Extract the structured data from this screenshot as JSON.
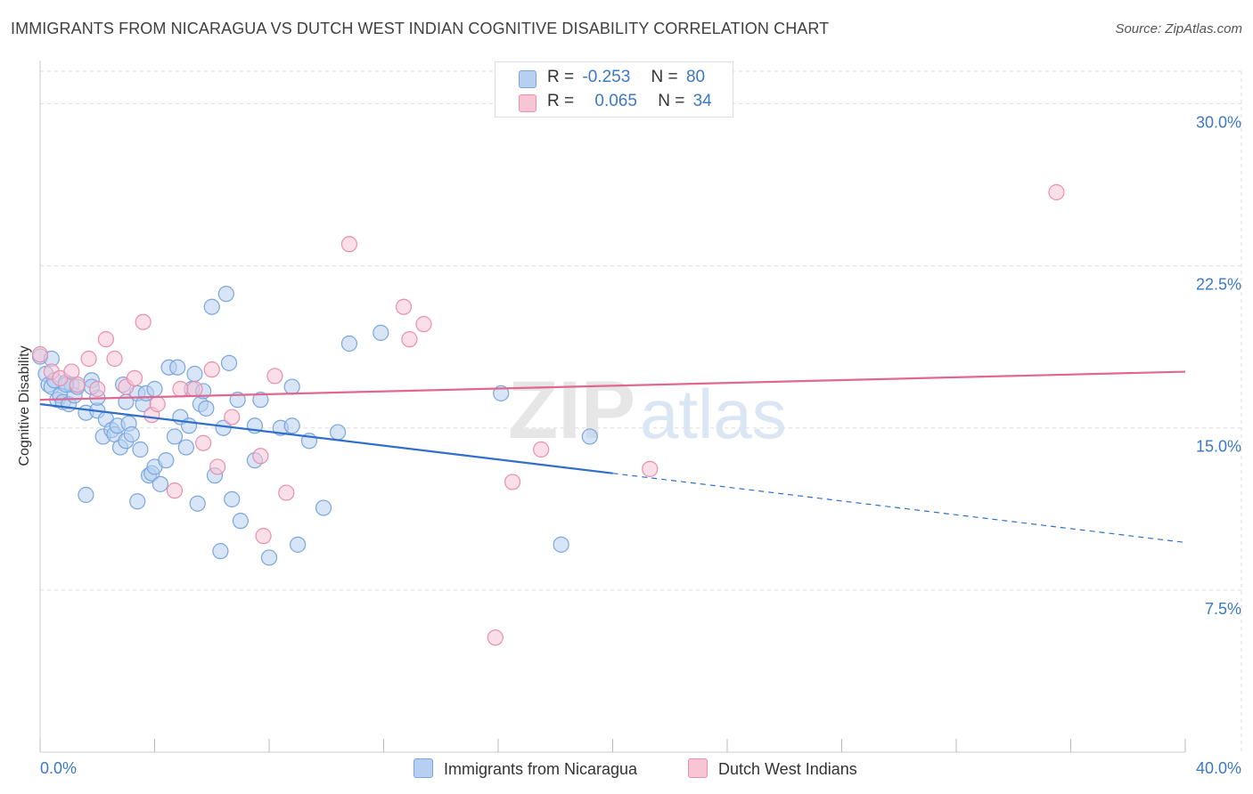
{
  "header": {
    "title": "IMMIGRANTS FROM NICARAGUA VS DUTCH WEST INDIAN COGNITIVE DISABILITY CORRELATION CHART",
    "source": "Source: ZipAtlas.com"
  },
  "legend_top": {
    "rows": [
      {
        "r_label": "R =",
        "r_value": "-0.253",
        "n_label": "N =",
        "n_value": "80"
      },
      {
        "r_label": "R =",
        "r_value": "0.065",
        "n_label": "N =",
        "n_value": "34"
      }
    ]
  },
  "watermark": {
    "zip": "ZIP",
    "atlas": "atlas"
  },
  "colors": {
    "blue_fill": "#b7d0f1",
    "blue_stroke": "#7aa6de",
    "blue_line": "#2f6fcb",
    "pink_fill": "#f8c5d5",
    "pink_stroke": "#e88fae",
    "pink_line": "#e06890",
    "axis_text": "#3b78c7",
    "grid": "#dddddd"
  },
  "chart_data": {
    "type": "scatter",
    "title": "IMMIGRANTS FROM NICARAGUA VS DUTCH WEST INDIAN COGNITIVE DISABILITY CORRELATION CHART",
    "xlabel": "",
    "ylabel": "Cognitive Disability",
    "xlim": [
      0,
      40
    ],
    "ylim": [
      0,
      31.5
    ],
    "x_tick_labels": [
      "0.0%",
      "40.0%"
    ],
    "y_ticks": [
      7.5,
      15.0,
      22.5,
      30.0
    ],
    "y_tick_labels": [
      "7.5%",
      "15.0%",
      "22.5%",
      "30.0%"
    ],
    "grid": true,
    "legend_position": "top-center",
    "series": [
      {
        "name": "Immigrants from Nicaragua",
        "color": "#7aa6de",
        "points": [
          [
            0.0,
            18.3
          ],
          [
            0.2,
            17.5
          ],
          [
            0.3,
            17.0
          ],
          [
            0.4,
            16.9
          ],
          [
            0.5,
            17.2
          ],
          [
            0.6,
            16.3
          ],
          [
            0.7,
            16.5
          ],
          [
            0.8,
            16.2
          ],
          [
            0.9,
            17.1
          ],
          [
            1.0,
            16.1
          ],
          [
            1.1,
            17.0
          ],
          [
            1.2,
            16.5
          ],
          [
            1.3,
            16.9
          ],
          [
            1.6,
            15.7
          ],
          [
            1.8,
            17.2
          ],
          [
            2.0,
            15.8
          ],
          [
            2.0,
            16.4
          ],
          [
            2.2,
            14.6
          ],
          [
            2.3,
            15.4
          ],
          [
            2.5,
            14.9
          ],
          [
            2.6,
            14.7
          ],
          [
            2.7,
            15.1
          ],
          [
            2.8,
            14.1
          ],
          [
            3.0,
            14.4
          ],
          [
            3.0,
            16.2
          ],
          [
            3.1,
            15.2
          ],
          [
            3.2,
            14.7
          ],
          [
            3.4,
            16.6
          ],
          [
            3.5,
            14.0
          ],
          [
            3.6,
            16.1
          ],
          [
            3.7,
            16.6
          ],
          [
            3.8,
            12.8
          ],
          [
            3.9,
            12.9
          ],
          [
            4.0,
            13.2
          ],
          [
            4.2,
            12.4
          ],
          [
            4.0,
            16.8
          ],
          [
            4.4,
            13.5
          ],
          [
            4.5,
            17.8
          ],
          [
            4.7,
            14.6
          ],
          [
            4.8,
            17.8
          ],
          [
            4.9,
            15.5
          ],
          [
            5.1,
            14.1
          ],
          [
            5.2,
            15.1
          ],
          [
            5.3,
            16.8
          ],
          [
            5.4,
            17.5
          ],
          [
            5.5,
            11.5
          ],
          [
            5.6,
            16.1
          ],
          [
            5.7,
            16.7
          ],
          [
            5.8,
            15.9
          ],
          [
            6.0,
            20.6
          ],
          [
            6.1,
            12.8
          ],
          [
            6.3,
            9.3
          ],
          [
            6.4,
            15.0
          ],
          [
            6.5,
            21.2
          ],
          [
            6.6,
            18.0
          ],
          [
            6.7,
            11.7
          ],
          [
            6.9,
            16.3
          ],
          [
            7.0,
            10.7
          ],
          [
            7.5,
            13.5
          ],
          [
            7.5,
            15.1
          ],
          [
            7.7,
            16.3
          ],
          [
            8.0,
            9.0
          ],
          [
            8.4,
            15.0
          ],
          [
            8.8,
            15.1
          ],
          [
            8.8,
            16.9
          ],
          [
            9.0,
            9.6
          ],
          [
            9.4,
            14.4
          ],
          [
            9.9,
            11.3
          ],
          [
            10.4,
            14.8
          ],
          [
            10.8,
            18.9
          ],
          [
            11.9,
            19.4
          ],
          [
            16.1,
            16.6
          ],
          [
            18.2,
            9.6
          ],
          [
            19.2,
            14.6
          ],
          [
            0.4,
            18.2
          ],
          [
            0.9,
            17.0
          ],
          [
            1.6,
            11.9
          ],
          [
            3.4,
            11.6
          ],
          [
            1.8,
            16.9
          ],
          [
            2.9,
            17.0
          ]
        ],
        "trend": {
          "x0": 0,
          "y0": 16.1,
          "x1": 20,
          "y1": 12.9,
          "dash_x1": 40,
          "dash_y1": 9.7
        }
      },
      {
        "name": "Dutch West Indians",
        "color": "#e88fae",
        "points": [
          [
            0.0,
            18.4
          ],
          [
            0.4,
            17.6
          ],
          [
            0.7,
            17.3
          ],
          [
            1.1,
            17.6
          ],
          [
            1.3,
            17.0
          ],
          [
            1.7,
            18.2
          ],
          [
            2.0,
            16.8
          ],
          [
            2.3,
            19.1
          ],
          [
            2.6,
            18.2
          ],
          [
            3.0,
            16.9
          ],
          [
            3.3,
            17.3
          ],
          [
            3.6,
            19.9
          ],
          [
            3.9,
            15.6
          ],
          [
            4.1,
            16.1
          ],
          [
            4.7,
            12.1
          ],
          [
            4.9,
            16.8
          ],
          [
            5.4,
            16.8
          ],
          [
            5.7,
            14.3
          ],
          [
            6.0,
            17.7
          ],
          [
            6.2,
            13.2
          ],
          [
            6.7,
            15.5
          ],
          [
            7.7,
            13.7
          ],
          [
            7.8,
            10.0
          ],
          [
            8.2,
            17.4
          ],
          [
            8.6,
            12.0
          ],
          [
            10.8,
            23.5
          ],
          [
            12.7,
            20.6
          ],
          [
            12.9,
            19.1
          ],
          [
            13.4,
            19.8
          ],
          [
            15.9,
            5.3
          ],
          [
            16.5,
            12.5
          ],
          [
            17.5,
            14.0
          ],
          [
            21.3,
            13.1
          ],
          [
            35.5,
            25.9
          ]
        ],
        "trend": {
          "x0": 0,
          "y0": 16.3,
          "x1": 40,
          "y1": 17.6
        }
      }
    ]
  }
}
